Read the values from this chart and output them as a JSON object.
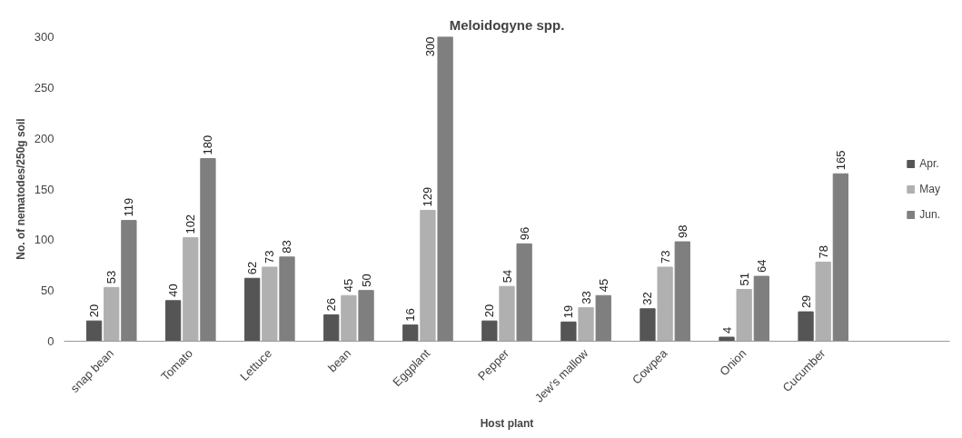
{
  "chart_data": {
    "type": "bar",
    "title": "Meloidogyne spp.",
    "xlabel": "Host plant",
    "ylabel": "No. of nematodes/250g soil",
    "categories": [
      "snap bean",
      "Tomato",
      "Lettuce",
      "bean",
      "Eggplant",
      "Pepper",
      "Jew's mallow",
      "Cowpea",
      "Onion",
      "Cucumber"
    ],
    "series": [
      {
        "name": "Apr.",
        "color": "#555555",
        "values": [
          20,
          40,
          62,
          26,
          16,
          20,
          19,
          32,
          4,
          29
        ]
      },
      {
        "name": "May",
        "color": "#b0b0b0",
        "values": [
          53,
          102,
          73,
          45,
          129,
          54,
          33,
          73,
          51,
          78
        ]
      },
      {
        "name": "Jun.",
        "color": "#7f7f7f",
        "values": [
          119,
          180,
          83,
          50,
          300,
          96,
          45,
          98,
          64,
          165
        ]
      }
    ],
    "ylim": [
      0,
      300
    ],
    "yticks": [
      0,
      50,
      100,
      150,
      200,
      250,
      300
    ],
    "grid": false,
    "legend": "right",
    "data_labels": true
  }
}
